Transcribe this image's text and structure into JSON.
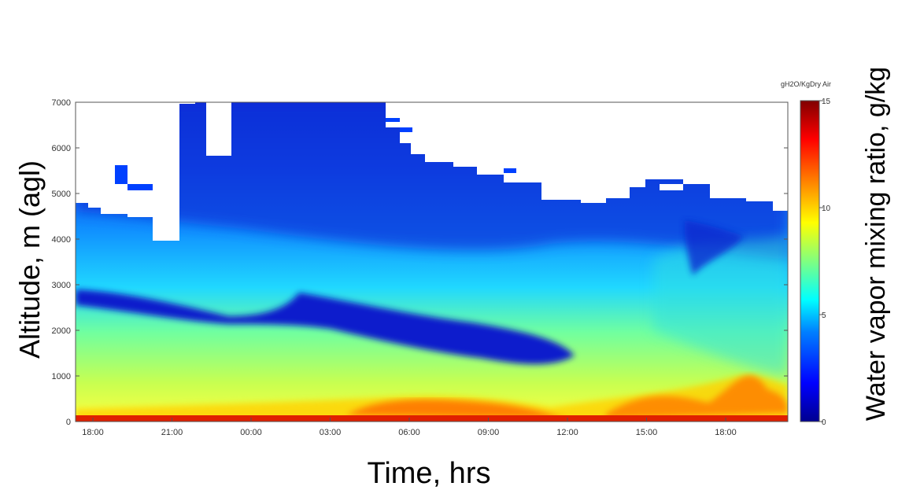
{
  "chart_data": {
    "type": "heatmap",
    "xlabel": "Time, hrs",
    "ylabel": "Altitude, m (agl)",
    "colorbar_label": "Water vapor mixing ratio, g/kg",
    "colorbar_unit_label": "gH2O/KgDry Air",
    "x_tick_labels": [
      "18:00",
      "21:00",
      "00:00",
      "03:00",
      "06:00",
      "09:00",
      "12:00",
      "15:00",
      "18:00"
    ],
    "y_ticks": [
      0,
      1000,
      2000,
      3000,
      4000,
      5000,
      6000,
      7000
    ],
    "ylim": [
      0,
      7000
    ],
    "colorbar_ticks": [
      0,
      5,
      10,
      15
    ],
    "clim": [
      0,
      15
    ],
    "colormap": [
      "#00008f",
      "#0000ff",
      "#0080ff",
      "#00ffff",
      "#80ff80",
      "#ffff00",
      "#ff8000",
      "#ff0000",
      "#800000"
    ],
    "features": [
      {
        "name": "dry layer descending",
        "altitude_start_m": 2800,
        "altitude_end_m": 1300,
        "value_g_per_kg": 1.5
      },
      {
        "name": "moist surface layer",
        "altitude_m": 100,
        "value_g_per_kg": 13
      },
      {
        "name": "afternoon moist plume",
        "altitude_m": 1500,
        "value_g_per_kg": 11
      }
    ]
  }
}
